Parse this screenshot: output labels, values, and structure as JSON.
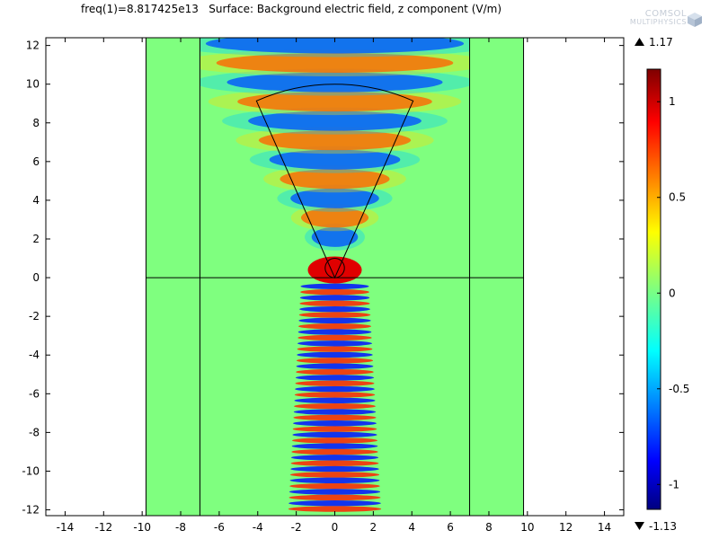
{
  "header": {
    "title": "freq(1)=8.817425e13   Surface: Background electric field, z component (V/m)",
    "logo_line1": "COMSOL",
    "logo_line2": "MULTIPHYSICS"
  },
  "chart_data": {
    "type": "heatmap",
    "title": "freq(1)=8.817425e13   Surface: Background electric field, z component (V/m)",
    "quantity": "Background electric field, z component",
    "unit": "V/m",
    "xlim": [
      -15,
      15
    ],
    "ylim": [
      -12.3,
      12.4
    ],
    "x_ticks": [
      -14,
      -12,
      -10,
      -8,
      -6,
      -4,
      -2,
      0,
      2,
      4,
      6,
      8,
      10,
      12,
      14
    ],
    "y_ticks": [
      -12,
      -10,
      -8,
      -6,
      -4,
      -2,
      0,
      2,
      4,
      6,
      8,
      10,
      12
    ],
    "domain_x": [
      -9.8,
      9.8
    ],
    "inner_region_x": [
      -7,
      7
    ],
    "interface_y": 0,
    "sector": {
      "center": [
        0,
        0
      ],
      "radius": 10,
      "half_angle_deg": 24
    },
    "circle": {
      "center": [
        0,
        0.5
      ],
      "radius": 0.5
    },
    "colorbar": {
      "min": -1.13,
      "max": 1.17,
      "max_label": "1.17",
      "min_label": "-1.13",
      "ticks": [
        1,
        0.5,
        0,
        -0.5,
        -1
      ],
      "tick_labels": [
        "1",
        "0.5",
        "0",
        "-0.5",
        "-1"
      ],
      "colormap": "rainbow"
    },
    "grid": false
  }
}
